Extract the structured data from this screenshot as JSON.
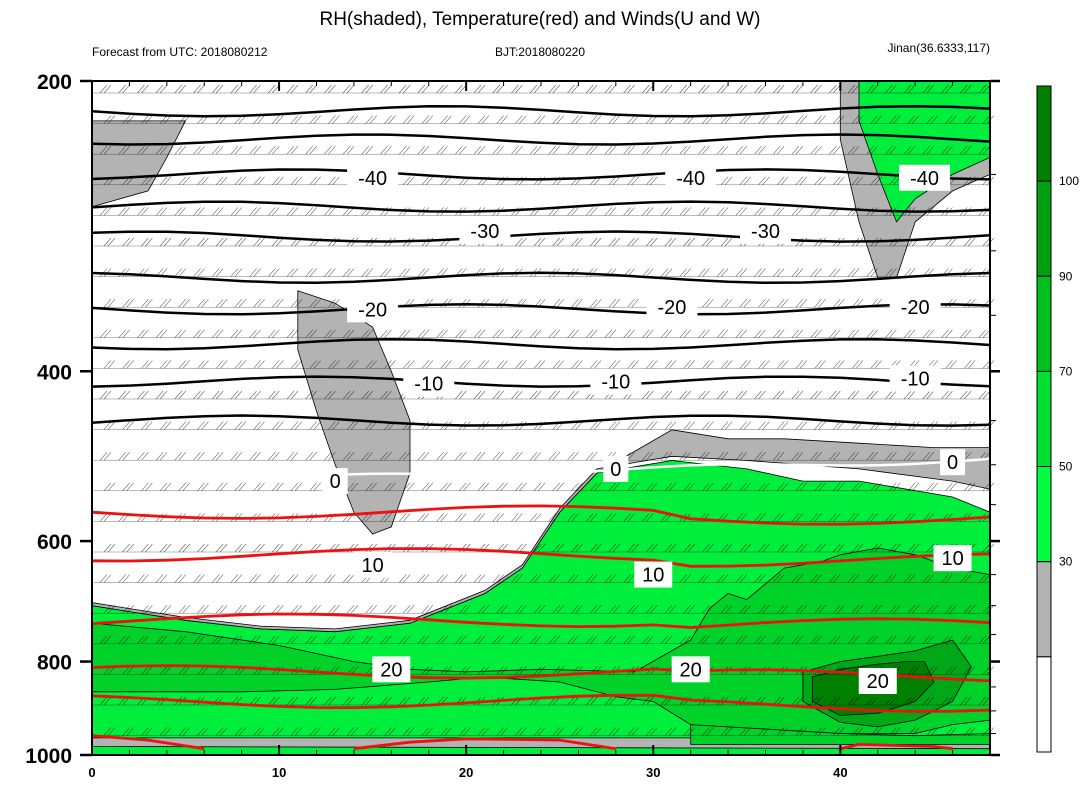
{
  "title": "RH(shaded), Temperature(red) and Winds(U and W)",
  "subtitle_left": "Forecast from UTC: 2018080212",
  "subtitle_center": "BJT:2018080220",
  "subtitle_right": "Jinan(36.6333,117)",
  "chart_data": {
    "type": "heatmap",
    "x_ticks": [
      0,
      10,
      20,
      30,
      40
    ],
    "xlim": [
      0,
      48
    ],
    "y_ticks": [
      200,
      400,
      600,
      800,
      1000
    ],
    "ylim": [
      200,
      1000
    ],
    "y_reversed": true,
    "y_scale": "log",
    "grid": true,
    "colorbar": {
      "levels": [
        30,
        50,
        70,
        90,
        100
      ],
      "colors": [
        "#ffffff",
        "#b3b3b3",
        "#00ff40",
        "#00e030",
        "#00c020",
        "#00a010",
        "#008000"
      ]
    },
    "rh_regions": [
      {
        "level": "50-70",
        "color": "#00ee3c",
        "points": [
          [
            0,
            1000
          ],
          [
            48,
            1000
          ],
          [
            48,
            560
          ],
          [
            46,
            540
          ],
          [
            41,
            520
          ],
          [
            38,
            520
          ],
          [
            35,
            505
          ],
          [
            31,
            495
          ],
          [
            27,
            510
          ],
          [
            25,
            560
          ],
          [
            23,
            640
          ],
          [
            21,
            680
          ],
          [
            17,
            730
          ],
          [
            13,
            745
          ],
          [
            9,
            740
          ],
          [
            5,
            725
          ],
          [
            2,
            710
          ],
          [
            0,
            700
          ]
        ]
      },
      {
        "level": "30-50",
        "color": "#b3b3b3",
        "points": [
          [
            0,
            700
          ],
          [
            2,
            710
          ],
          [
            5,
            725
          ],
          [
            9,
            740
          ],
          [
            13,
            745
          ],
          [
            17,
            730
          ],
          [
            21,
            680
          ],
          [
            23,
            640
          ],
          [
            25,
            560
          ],
          [
            27,
            510
          ],
          [
            31,
            460
          ],
          [
            34,
            470
          ],
          [
            37,
            470
          ],
          [
            41,
            475
          ],
          [
            45,
            480
          ],
          [
            48,
            480
          ],
          [
            48,
            530
          ],
          [
            46,
            520
          ],
          [
            41,
            505
          ],
          [
            38,
            500
          ],
          [
            35,
            495
          ],
          [
            31,
            490
          ],
          [
            27,
            505
          ],
          [
            25,
            555
          ],
          [
            23,
            635
          ],
          [
            21,
            675
          ],
          [
            17,
            725
          ],
          [
            13,
            740
          ],
          [
            9,
            735
          ],
          [
            5,
            720
          ],
          [
            2,
            705
          ],
          [
            0,
            695
          ]
        ]
      },
      {
        "level": "30-50",
        "color": "#b3b3b3",
        "points": [
          [
            11,
            330
          ],
          [
            13,
            340
          ],
          [
            15,
            360
          ],
          [
            16,
            400
          ],
          [
            17,
            450
          ],
          [
            17,
            510
          ],
          [
            16,
            580
          ],
          [
            15,
            590
          ],
          [
            14,
            560
          ],
          [
            13,
            500
          ],
          [
            12,
            440
          ],
          [
            11,
            380
          ]
        ]
      },
      {
        "level": "30-50",
        "color": "#b3b3b3",
        "points": [
          [
            0,
            220
          ],
          [
            5,
            220
          ],
          [
            4,
            240
          ],
          [
            3,
            260
          ],
          [
            0,
            270
          ]
        ]
      },
      {
        "level": "30-50",
        "color": "#b3b3b3",
        "points": [
          [
            40,
            200
          ],
          [
            48,
            200
          ],
          [
            48,
            250
          ],
          [
            46,
            260
          ],
          [
            44,
            280
          ],
          [
            43,
            320
          ],
          [
            42,
            320
          ],
          [
            41,
            280
          ],
          [
            40,
            230
          ]
        ]
      },
      {
        "level": "50-70",
        "color": "#00ee3c",
        "points": [
          [
            41,
            200
          ],
          [
            48,
            200
          ],
          [
            48,
            240
          ],
          [
            46,
            250
          ],
          [
            44,
            265
          ],
          [
            43,
            280
          ],
          [
            42,
            250
          ],
          [
            41,
            220
          ]
        ]
      },
      {
        "level": "30-50",
        "color": "#b3b3b3",
        "points": [
          [
            0,
            960
          ],
          [
            48,
            960
          ],
          [
            48,
            985
          ],
          [
            0,
            980
          ]
        ]
      },
      {
        "level": "70-90",
        "color": "#00d22a",
        "points": [
          [
            0,
            730
          ],
          [
            5,
            745
          ],
          [
            10,
            770
          ],
          [
            14,
            800
          ],
          [
            17,
            815
          ],
          [
            20,
            820
          ],
          [
            24,
            815
          ],
          [
            29,
            820
          ],
          [
            32,
            760
          ],
          [
            33,
            705
          ],
          [
            34,
            680
          ],
          [
            35,
            690
          ],
          [
            37,
            640
          ],
          [
            39,
            630
          ],
          [
            40,
            620
          ],
          [
            42,
            610
          ],
          [
            44,
            620
          ],
          [
            46,
            640
          ],
          [
            48,
            650
          ],
          [
            48,
            920
          ],
          [
            46,
            930
          ],
          [
            44,
            950
          ],
          [
            40,
            950
          ],
          [
            36,
            940
          ],
          [
            33,
            940
          ],
          [
            32,
            930
          ],
          [
            30,
            880
          ],
          [
            28,
            870
          ],
          [
            25,
            840
          ],
          [
            21,
            830
          ],
          [
            18,
            840
          ],
          [
            13,
            855
          ],
          [
            8,
            860
          ],
          [
            4,
            860
          ],
          [
            0,
            860
          ]
        ]
      },
      {
        "level": "70-90",
        "color": "#00d22a",
        "points": [
          [
            32,
            930
          ],
          [
            36,
            940
          ],
          [
            40,
            950
          ],
          [
            44,
            955
          ],
          [
            48,
            950
          ],
          [
            48,
            975
          ],
          [
            32,
            975
          ]
        ]
      },
      {
        "level": "90-100",
        "color": "#00a818",
        "points": [
          [
            38,
            820
          ],
          [
            40,
            800
          ],
          [
            42,
            790
          ],
          [
            44,
            780
          ],
          [
            46,
            760
          ],
          [
            47,
            810
          ],
          [
            46,
            880
          ],
          [
            44,
            920
          ],
          [
            42,
            935
          ],
          [
            40,
            925
          ],
          [
            38,
            880
          ]
        ]
      },
      {
        "level": "100+",
        "color": "#008000",
        "points": [
          [
            38.5,
            830
          ],
          [
            40,
            815
          ],
          [
            42,
            805
          ],
          [
            43.5,
            800
          ],
          [
            44.5,
            800
          ],
          [
            45,
            840
          ],
          [
            44,
            880
          ],
          [
            42,
            905
          ],
          [
            40,
            910
          ],
          [
            38.5,
            880
          ]
        ]
      }
    ],
    "isotherm_labels_black": [
      {
        "x": 15,
        "y": 252,
        "text": "-40"
      },
      {
        "x": 32,
        "y": 252,
        "text": "-40"
      },
      {
        "x": 44.5,
        "y": 252,
        "text": "-40"
      },
      {
        "x": 21,
        "y": 286,
        "text": "-30"
      },
      {
        "x": 36,
        "y": 286,
        "text": "-30"
      },
      {
        "x": 15,
        "y": 345,
        "text": "-20"
      },
      {
        "x": 31,
        "y": 343,
        "text": "-20"
      },
      {
        "x": 44,
        "y": 343,
        "text": "-20"
      },
      {
        "x": 18,
        "y": 412,
        "text": "-10"
      },
      {
        "x": 28,
        "y": 410,
        "text": "-10"
      },
      {
        "x": 44,
        "y": 407,
        "text": "-10"
      }
    ],
    "isotherm_labels_white": [
      {
        "x": 13,
        "y": 520,
        "text": "0"
      },
      {
        "x": 28,
        "y": 505,
        "text": "0"
      },
      {
        "x": 46,
        "y": 497,
        "text": "0"
      }
    ],
    "isotherm_labels_red": [
      {
        "x": 15,
        "y": 635,
        "text": "10"
      },
      {
        "x": 30,
        "y": 650,
        "text": "10"
      },
      {
        "x": 46,
        "y": 625,
        "text": "10"
      },
      {
        "x": 16,
        "y": 815,
        "text": "20"
      },
      {
        "x": 32,
        "y": 815,
        "text": "20"
      },
      {
        "x": 42,
        "y": 838,
        "text": "20"
      }
    ]
  }
}
